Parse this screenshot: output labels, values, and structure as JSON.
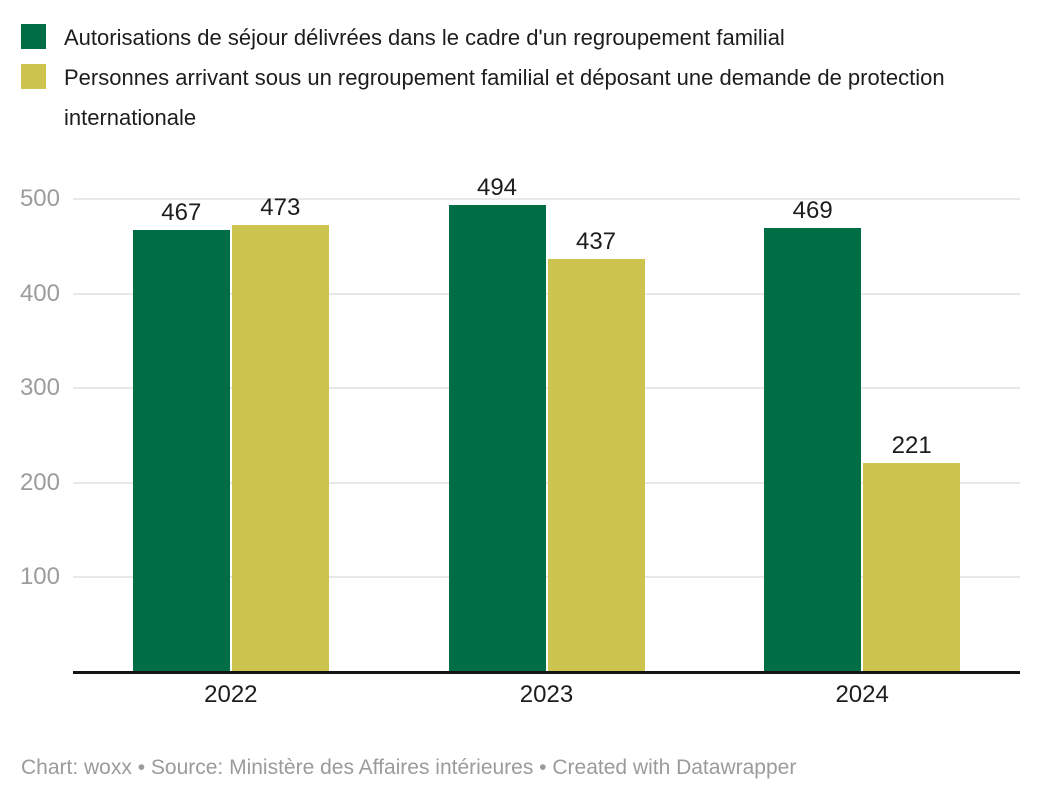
{
  "legend": {
    "items": [
      {
        "label": "Autorisations de séjour délivrées dans le cadre d'un regroupement familial",
        "color": "#006e45"
      },
      {
        "label": "Personnes arrivant sous un regroupement familial et déposant une demande de protection internationale",
        "color": "#cdc450"
      }
    ]
  },
  "chart_data": {
    "type": "bar",
    "categories": [
      "2022",
      "2023",
      "2024"
    ],
    "series": [
      {
        "name": "Autorisations de séjour délivrées dans le cadre d'un regroupement familial",
        "color": "#006e45",
        "values": [
          467,
          494,
          469
        ]
      },
      {
        "name": "Personnes arrivant sous un regroupement familial et déposant une demande de protection internationale",
        "color": "#cdc450",
        "values": [
          473,
          437,
          221
        ]
      }
    ],
    "title": "",
    "xlabel": "",
    "ylabel": "",
    "ylim": [
      0,
      500
    ],
    "yticks": [
      100,
      200,
      300,
      400,
      500
    ],
    "grid": true,
    "legend_position": "top",
    "bar_value_labels": true
  },
  "footer": {
    "text": "Chart: woxx • Source: Ministère des Affaires intérieures • Created with Datawrapper"
  },
  "colors": {
    "series_green": "#006e45",
    "series_yellow": "#cdc450",
    "gridline": "#e8e8e8",
    "axis_line": "#141414",
    "tick_label": "#9c9c9c",
    "text": "#1d1d1d",
    "footer_text": "#9b9b9b",
    "background": "#ffffff"
  }
}
